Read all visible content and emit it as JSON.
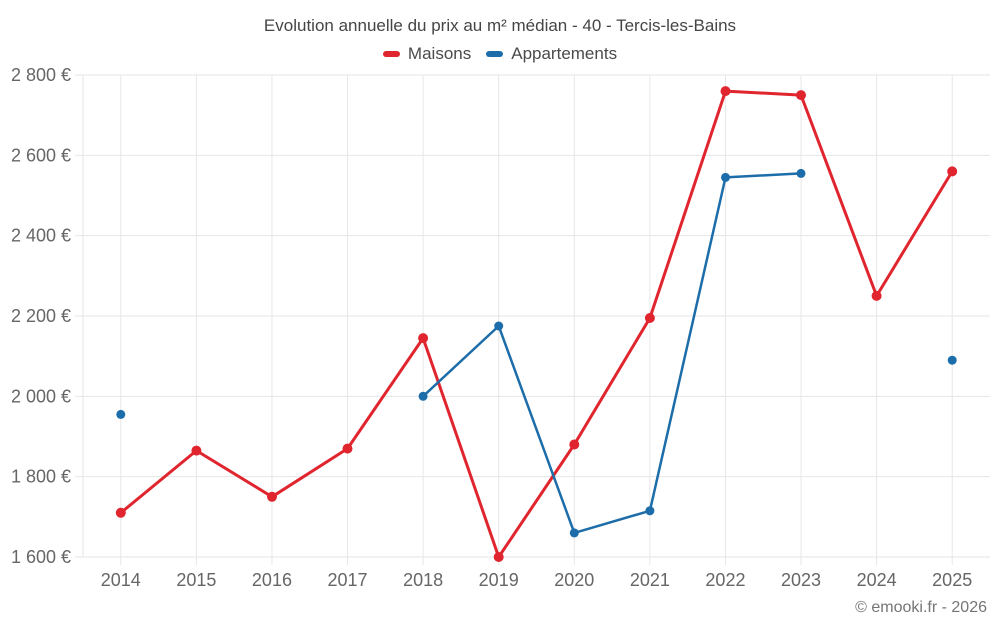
{
  "chart_data": {
    "type": "line",
    "title": "Evolution annuelle du prix au m² médian - 40 - Tercis-les-Bains",
    "x_categories": [
      "2014",
      "2015",
      "2016",
      "2017",
      "2018",
      "2019",
      "2020",
      "2021",
      "2022",
      "2023",
      "2024",
      "2025"
    ],
    "series": [
      {
        "name": "Maisons",
        "color": "#e0252e",
        "values": [
          1710,
          1865,
          1750,
          1870,
          2145,
          1600,
          1880,
          2195,
          2760,
          2750,
          2250,
          2560
        ]
      },
      {
        "name": "Appartements",
        "color": "#1c6da9",
        "values": [
          1955,
          null,
          null,
          null,
          2000,
          2175,
          1660,
          1715,
          2545,
          2555,
          null,
          2090
        ]
      }
    ],
    "ylim": [
      1600,
      2800
    ],
    "ytick_step": 200,
    "ytick_labels": [
      "1 600 €",
      "1 800 €",
      "2 000 €",
      "2 200 €",
      "2 400 €",
      "2 600 €",
      "2 800 €"
    ],
    "y_unit": "€",
    "grid": true,
    "legend_position": "top"
  },
  "footer": {
    "copyright": "© emooki.fr - 2026"
  },
  "theme": {
    "grid_color": "#e6e6e6",
    "tick_label_color": "#666666",
    "title_color": "#454545",
    "footer_color": "#757575"
  }
}
